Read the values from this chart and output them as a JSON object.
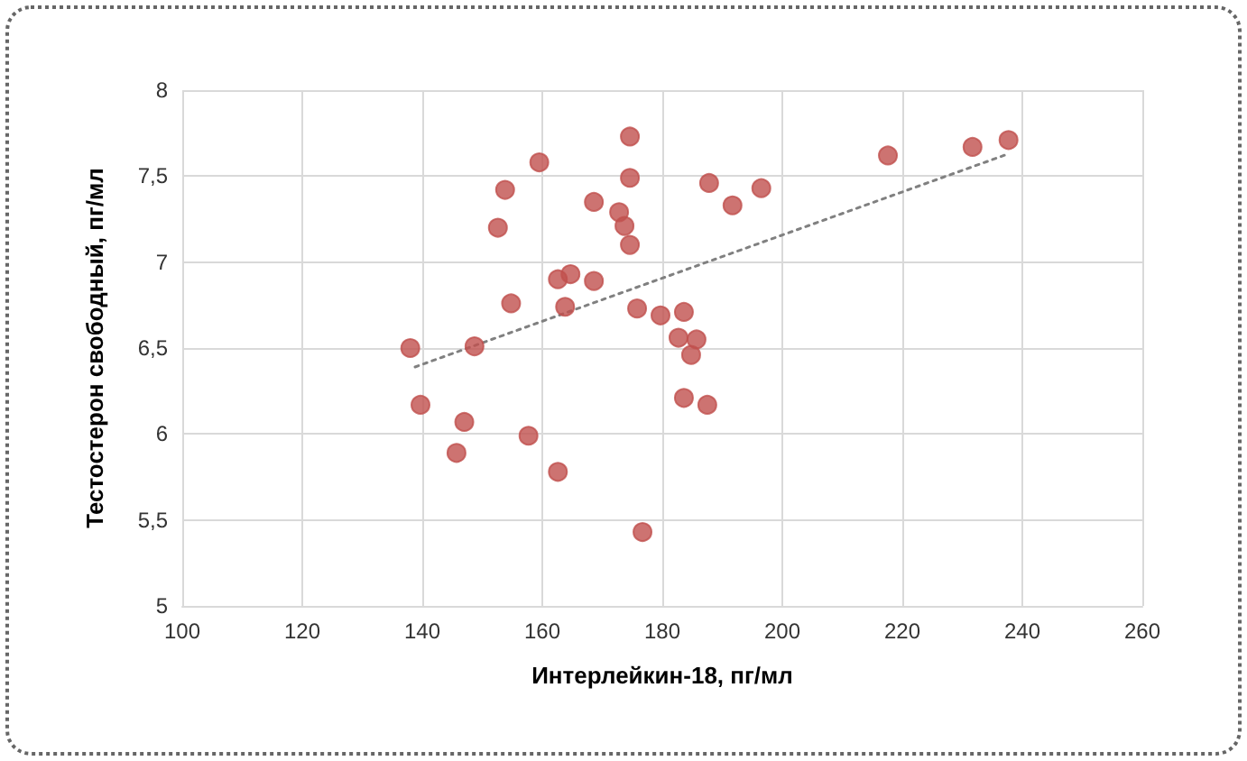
{
  "chart_data": {
    "type": "scatter",
    "xlabel": "Интерлейкин-18, пг/мл",
    "ylabel": "Тестостерон свободный, пг/мл",
    "xlim": [
      100,
      260
    ],
    "xticks": [
      100,
      120,
      140,
      160,
      180,
      200,
      220,
      240,
      260
    ],
    "ylim": [
      5,
      8
    ],
    "yticks": [
      {
        "value": 5,
        "label": "5"
      },
      {
        "value": 5.5,
        "label": "5,5"
      },
      {
        "value": 6,
        "label": "6"
      },
      {
        "value": 6.5,
        "label": "6,5"
      },
      {
        "value": 7,
        "label": "7"
      },
      {
        "value": 7.5,
        "label": "7,5"
      },
      {
        "value": 8,
        "label": "8"
      }
    ],
    "grid": true,
    "marker": "circle",
    "series": [
      {
        "color": "#c0504d",
        "x": [
          138,
          139.7,
          147,
          148.7,
          145.7,
          152.6,
          153.8,
          154.8,
          157.7,
          159.5,
          162.6,
          164.7,
          163.8,
          162.6,
          168.6,
          168.6,
          172.8,
          173.7,
          174.6,
          174.6,
          174.6,
          175.8,
          176.7,
          179.7,
          182.7,
          183.6,
          183.6,
          184.8,
          185.7,
          187.5,
          187.8,
          191.7,
          196.5,
          217.6,
          231.7,
          237.7
        ],
        "values": [
          6.5,
          6.17,
          6.07,
          6.51,
          5.89,
          7.2,
          7.42,
          6.76,
          5.99,
          7.58,
          6.9,
          6.93,
          6.74,
          5.78,
          7.35,
          6.89,
          7.29,
          7.21,
          7.73,
          7.49,
          7.1,
          6.73,
          5.43,
          6.69,
          6.56,
          6.71,
          6.21,
          6.46,
          6.55,
          6.17,
          7.46,
          7.33,
          7.43,
          7.62,
          7.67,
          7.71
        ]
      },
      {
        "type": "line",
        "color": "#808080",
        "line_style": "dotted",
        "marker": "none",
        "x": [
          138.8,
          237.7
        ],
        "values": [
          6.39,
          7.63
        ]
      }
    ]
  }
}
